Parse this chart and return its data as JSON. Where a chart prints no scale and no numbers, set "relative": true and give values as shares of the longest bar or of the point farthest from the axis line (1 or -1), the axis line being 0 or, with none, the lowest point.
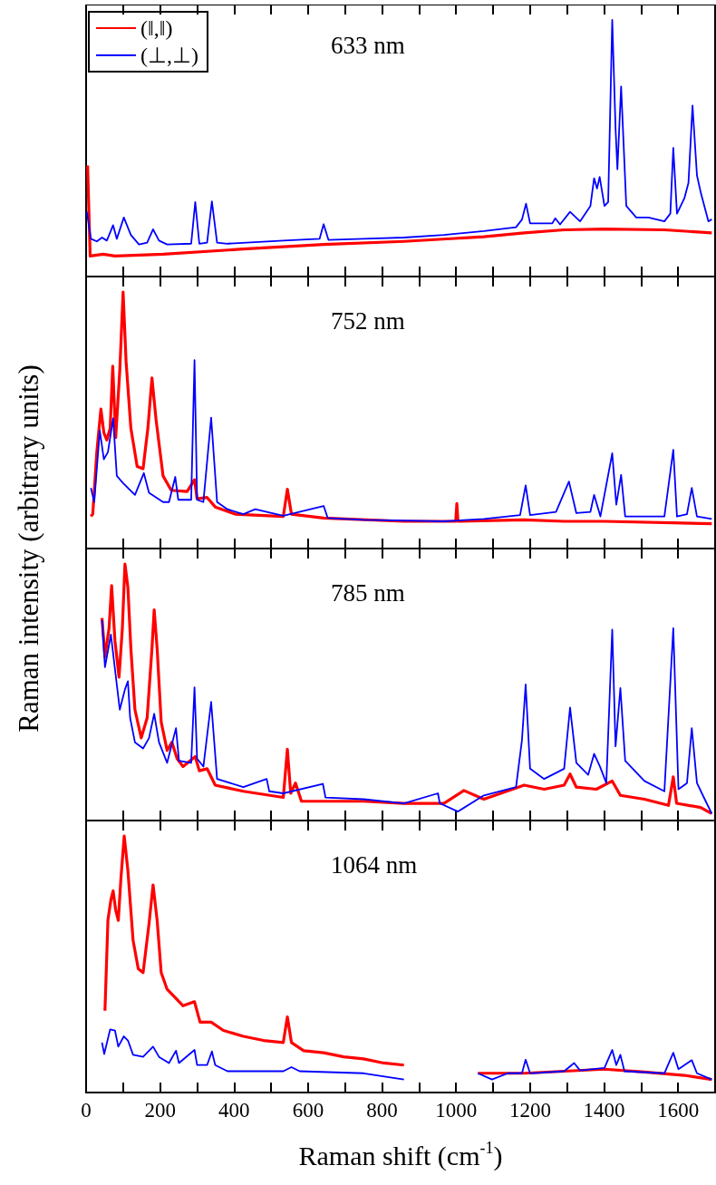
{
  "chart_data": [
    {
      "type": "line",
      "title": "633 nm",
      "relative": true,
      "legend": "top left",
      "tick_labels": false,
      "xlim": [
        0,
        1700
      ],
      "xticks": [
        0,
        {
          "value": 100,
          "label": null
        },
        200,
        {
          "value": 300,
          "label": null
        },
        400,
        {
          "value": 500,
          "label": null
        },
        600,
        {
          "value": 700,
          "label": null
        },
        800,
        {
          "value": 900,
          "label": null
        },
        1000,
        {
          "value": 1100,
          "label": null
        },
        1200,
        {
          "value": 1300,
          "label": null
        },
        1400,
        {
          "value": 1500,
          "label": null
        },
        1600
      ],
      "series": [
        {
          "name": "(‖,‖)",
          "color": "#ff0000",
          "x": [
            4,
            11,
            46,
            78,
            208,
            425,
            642,
            859,
            1075,
            1184,
            1292,
            1401,
            1563,
            1691
          ],
          "values": [
            0.433,
            0.08,
            0.087,
            0.08,
            0.087,
            0.107,
            0.125,
            0.137,
            0.155,
            0.17,
            0.182,
            0.185,
            0.182,
            0.17
          ]
        },
        {
          "name": "(⊥,⊥)",
          "color": "#0000ff",
          "x": [
            2,
            13,
            29,
            43,
            56,
            73,
            83,
            102,
            121,
            143,
            165,
            181,
            197,
            219,
            284,
            295,
            306,
            327,
            340,
            354,
            382,
            533,
            631,
            642,
            655,
            750,
            859,
            967,
            1075,
            1162,
            1178,
            1189,
            1200,
            1260,
            1268,
            1281,
            1308,
            1335,
            1363,
            1373,
            1381,
            1388,
            1401,
            1411,
            1422,
            1431,
            1436,
            1446,
            1460,
            1487,
            1520,
            1563,
            1579,
            1587,
            1597,
            1617,
            1628,
            1639,
            1651,
            1662,
            1682,
            1691
          ],
          "values": [
            0.253,
            0.147,
            0.137,
            0.152,
            0.14,
            0.2,
            0.147,
            0.23,
            0.162,
            0.125,
            0.132,
            0.184,
            0.14,
            0.125,
            0.128,
            0.29,
            0.128,
            0.132,
            0.293,
            0.132,
            0.128,
            0.14,
            0.147,
            0.204,
            0.143,
            0.147,
            0.152,
            0.162,
            0.177,
            0.192,
            0.222,
            0.284,
            0.207,
            0.207,
            0.227,
            0.203,
            0.252,
            0.215,
            0.275,
            0.383,
            0.343,
            0.388,
            0.275,
            0.29,
            1.0,
            0.576,
            0.418,
            0.741,
            0.275,
            0.23,
            0.23,
            0.215,
            0.245,
            0.501,
            0.245,
            0.305,
            0.365,
            0.666,
            0.394,
            0.323,
            0.215,
            0.223
          ]
        }
      ]
    },
    {
      "type": "line",
      "title": "752 nm",
      "ylabel": "Raman intensity (arbitrary units)",
      "relative": true,
      "tick_labels": false,
      "xlim": [
        0,
        1700
      ],
      "xticks": [
        0,
        {
          "value": 100,
          "label": null
        },
        200,
        {
          "value": 300,
          "label": null
        },
        400,
        {
          "value": 500,
          "label": null
        },
        600,
        {
          "value": 700,
          "label": null
        },
        800,
        {
          "value": 900,
          "label": null
        },
        1000,
        {
          "value": 1100,
          "label": null
        },
        1200,
        {
          "value": 1300,
          "label": null
        },
        1400,
        {
          "value": 1500,
          "label": null
        },
        1600
      ],
      "series": [
        {
          "color": "#ff0000",
          "x": [
            13,
            18,
            29,
            40,
            48,
            56,
            65,
            72,
            80,
            91,
            100,
            108,
            121,
            138,
            154,
            167,
            178,
            189,
            208,
            230,
            273,
            293,
            300,
            327,
            349,
            403,
            533,
            544,
            555,
            642,
            859,
            999,
            1002,
            1005,
            1184,
            1292,
            1401,
            1691
          ],
          "values": [
            0.125,
            0.134,
            0.377,
            0.544,
            0.451,
            0.423,
            0.469,
            0.711,
            0.432,
            0.693,
            1.0,
            0.73,
            0.469,
            0.32,
            0.311,
            0.469,
            0.665,
            0.503,
            0.283,
            0.227,
            0.222,
            0.268,
            0.194,
            0.199,
            0.162,
            0.134,
            0.125,
            0.231,
            0.134,
            0.119,
            0.106,
            0.106,
            0.175,
            0.106,
            0.112,
            0.106,
            0.106,
            0.097
          ]
        },
        {
          "color": "#0000ff",
          "x": [
            13,
            22,
            37,
            48,
            59,
            73,
            83,
            100,
            132,
            156,
            170,
            208,
            224,
            241,
            249,
            284,
            293,
            300,
            317,
            338,
            354,
            382,
            425,
            457,
            533,
            642,
            653,
            750,
            967,
            1075,
            1173,
            1188,
            1200,
            1270,
            1305,
            1325,
            1363,
            1373,
            1390,
            1422,
            1433,
            1446,
            1457,
            1563,
            1587,
            1597,
            1624,
            1637,
            1651,
            1691
          ],
          "values": [
            0.236,
            0.181,
            0.46,
            0.348,
            0.376,
            0.507,
            0.283,
            0.255,
            0.209,
            0.294,
            0.217,
            0.181,
            0.181,
            0.279,
            0.19,
            0.19,
            0.734,
            0.19,
            0.181,
            0.51,
            0.181,
            0.153,
            0.134,
            0.153,
            0.128,
            0.166,
            0.119,
            0.112,
            0.106,
            0.115,
            0.13,
            0.246,
            0.13,
            0.143,
            0.261,
            0.138,
            0.143,
            0.209,
            0.125,
            0.371,
            0.171,
            0.287,
            0.125,
            0.125,
            0.385,
            0.125,
            0.134,
            0.236,
            0.125,
            0.115
          ]
        }
      ]
    },
    {
      "type": "line",
      "title": "785 nm",
      "relative": true,
      "tick_labels": false,
      "xlim": [
        0,
        1700
      ],
      "xticks": [
        0,
        {
          "value": 100,
          "label": null
        },
        200,
        {
          "value": 300,
          "label": null
        },
        400,
        {
          "value": 500,
          "label": null
        },
        600,
        {
          "value": 700,
          "label": null
        },
        800,
        {
          "value": 900,
          "label": null
        },
        1000,
        {
          "value": 1100,
          "label": null
        },
        1200,
        {
          "value": 1300,
          "label": null
        },
        1400,
        {
          "value": 1500,
          "label": null
        },
        1600
      ],
      "series": [
        {
          "color": "#ff0000",
          "x": [
            43,
            51,
            62,
            69,
            78,
            89,
            98,
            105,
            113,
            121,
            132,
            149,
            165,
            178,
            184,
            192,
            203,
            219,
            232,
            246,
            262,
            295,
            306,
            327,
            349,
            425,
            533,
            544,
            553,
            566,
            582,
            750,
            859,
            967,
            1021,
            1075,
            1184,
            1238,
            1292,
            1308,
            1325,
            1379,
            1422,
            1444,
            1509,
            1574,
            1587,
            1596,
            1661,
            1691
          ],
          "values": [
            0.789,
            0.638,
            0.749,
            0.916,
            0.7,
            0.559,
            0.749,
            1.0,
            0.908,
            0.67,
            0.432,
            0.322,
            0.4,
            0.67,
            0.821,
            0.67,
            0.384,
            0.273,
            0.305,
            0.241,
            0.21,
            0.249,
            0.194,
            0.202,
            0.138,
            0.114,
            0.09,
            0.278,
            0.106,
            0.146,
            0.075,
            0.075,
            0.067,
            0.067,
            0.117,
            0.083,
            0.138,
            0.122,
            0.138,
            0.181,
            0.13,
            0.122,
            0.154,
            0.098,
            0.083,
            0.059,
            0.17,
            0.067,
            0.051,
            0.027
          ]
        },
        {
          "color": "#0000ff",
          "x": [
            43,
            51,
            67,
            78,
            91,
            105,
            113,
            119,
            132,
            154,
            170,
            184,
            197,
            219,
            243,
            251,
            284,
            293,
            300,
            317,
            338,
            354,
            425,
            488,
            495,
            533,
            640,
            647,
            750,
            859,
            951,
            956,
            1005,
            1075,
            1162,
            1178,
            1188,
            1200,
            1238,
            1292,
            1308,
            1325,
            1357,
            1373,
            1389,
            1406,
            1422,
            1431,
            1444,
            1457,
            1509,
            1563,
            1587,
            1601,
            1624,
            1637,
            1651,
            1672,
            1691
          ],
          "values": [
            0.781,
            0.598,
            0.725,
            0.59,
            0.432,
            0.511,
            0.543,
            0.4,
            0.305,
            0.281,
            0.321,
            0.416,
            0.305,
            0.225,
            0.36,
            0.233,
            0.225,
            0.519,
            0.241,
            0.21,
            0.462,
            0.162,
            0.13,
            0.162,
            0.114,
            0.106,
            0.143,
            0.09,
            0.083,
            0.067,
            0.106,
            0.067,
            0.035,
            0.098,
            0.13,
            0.313,
            0.53,
            0.202,
            0.162,
            0.202,
            0.44,
            0.225,
            0.178,
            0.26,
            0.21,
            0.146,
            0.744,
            0.289,
            0.516,
            0.233,
            0.154,
            0.114,
            0.749,
            0.122,
            0.146,
            0.36,
            0.146,
            0.083,
            0.027
          ]
        }
      ]
    },
    {
      "type": "line",
      "title": "1064 nm",
      "xlabel": "Raman shift (cm$^{-1}$)",
      "relative": true,
      "tick_labels": "x",
      "xlim": [
        0,
        1700
      ],
      "xticks": [
        0,
        {
          "value": 100,
          "label": null
        },
        200,
        {
          "value": 300,
          "label": null
        },
        400,
        {
          "value": 500,
          "label": null
        },
        600,
        {
          "value": 700,
          "label": null
        },
        800,
        {
          "value": 900,
          "label": null
        },
        1000,
        {
          "value": 1100,
          "label": null
        },
        1200,
        {
          "value": 1300,
          "label": null
        },
        1400,
        {
          "value": 1500,
          "label": null
        },
        1600
      ],
      "series": [
        {
          "color": "#ff0000",
          "x": [
            51,
            59,
            67,
            73,
            80,
            87,
            94,
            103,
            113,
            127,
            141,
            154,
            170,
            181,
            192,
            203,
            219,
            241,
            262,
            293,
            308,
            338,
            371,
            425,
            479,
            533,
            544,
            555,
            588,
            642,
            696,
            750,
            804,
            859,
            950,
            1059,
            1184,
            1292,
            1401,
            1509,
            1617,
            1691
          ],
          "values": [
            0.319,
            0.672,
            0.751,
            0.786,
            0.711,
            0.671,
            0.832,
            1.0,
            0.864,
            0.593,
            0.482,
            0.467,
            0.657,
            0.809,
            0.671,
            0.467,
            0.402,
            0.37,
            0.338,
            0.354,
            0.274,
            0.274,
            0.242,
            0.219,
            0.203,
            0.195,
            0.295,
            0.195,
            0.163,
            0.155,
            0.139,
            0.131,
            0.115,
            0.107,
            null,
            0.075,
            0.075,
            0.083,
            0.091,
            0.08,
            0.067,
            0.051
          ]
        },
        {
          "color": "#0000ff",
          "x": [
            43,
            49,
            65,
            78,
            87,
            102,
            113,
            127,
            154,
            181,
            197,
            224,
            243,
            251,
            293,
            300,
            327,
            340,
            349,
            382,
            533,
            555,
            577,
            750,
            859,
            950,
            1059,
            1097,
            1140,
            1178,
            1188,
            1200,
            1292,
            1319,
            1335,
            1401,
            1422,
            1433,
            1444,
            1455,
            1563,
            1587,
            1601,
            1637,
            1651,
            1691
          ],
          "values": [
            0.195,
            0.15,
            0.246,
            0.242,
            0.179,
            0.219,
            0.203,
            0.147,
            0.139,
            0.179,
            0.139,
            0.115,
            0.163,
            0.115,
            0.166,
            0.107,
            0.107,
            0.16,
            0.107,
            0.083,
            0.083,
            0.099,
            0.083,
            0.075,
            0.051,
            null,
            0.075,
            0.051,
            0.075,
            0.075,
            0.128,
            0.075,
            0.083,
            0.115,
            0.086,
            0.096,
            0.166,
            0.107,
            0.147,
            0.083,
            0.075,
            0.155,
            0.091,
            0.126,
            0.075,
            0.051
          ]
        }
      ]
    }
  ]
}
